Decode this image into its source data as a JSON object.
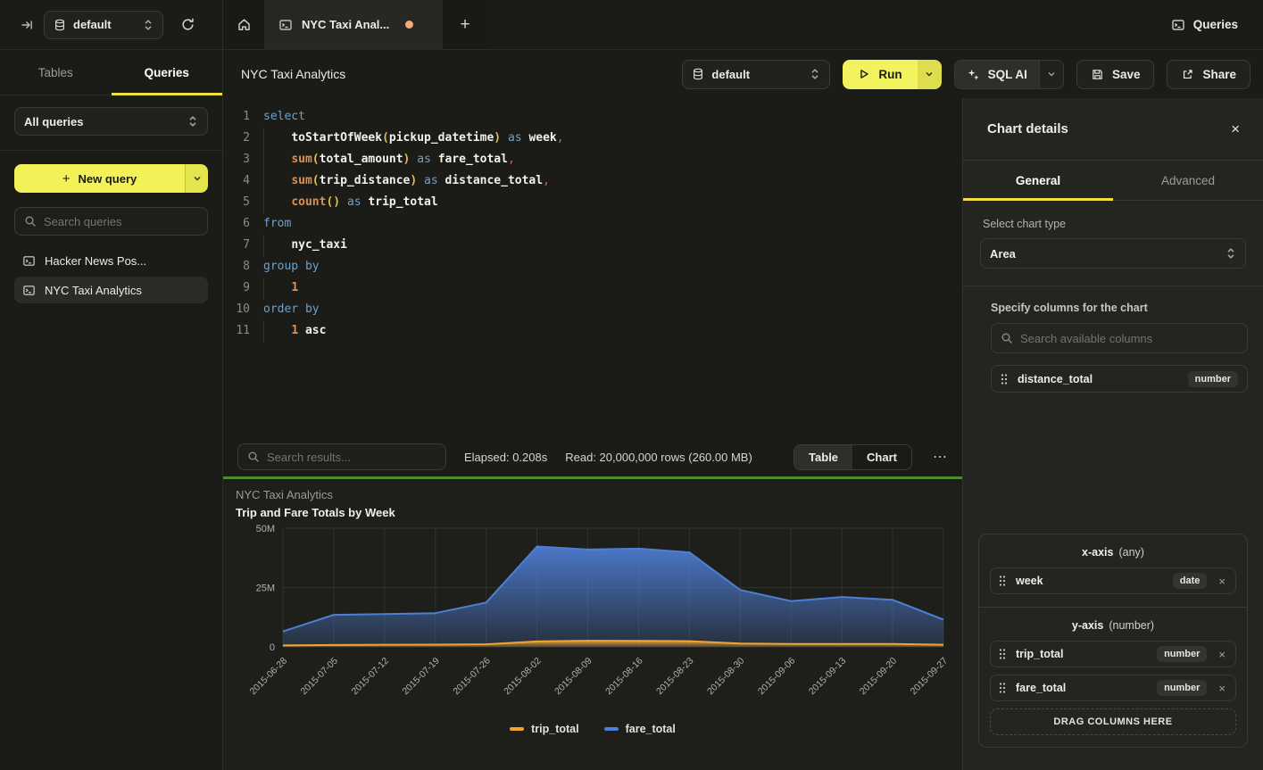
{
  "icons": {
    "plus": "+",
    "more": "⋯",
    "close": "×"
  },
  "colors": {
    "accent_yellow": "#F2F258",
    "tab_underline": "#F0E23C",
    "success_green": "#4E8C2E",
    "unsaved_dot": "#F2A878",
    "series_trip": "#F0A62E",
    "series_fare": "#4E7FD6"
  },
  "topbar": {
    "db_selector": "default",
    "tab_title": "NYC Taxi Anal...",
    "queries_button": "Queries"
  },
  "sidebar": {
    "tab_tables": "Tables",
    "tab_queries": "Queries",
    "filter_select": "All queries",
    "new_query_button": "New query",
    "search_placeholder": "Search queries",
    "queries": [
      {
        "label": "Hacker News Pos..."
      },
      {
        "label": "NYC Taxi Analytics"
      }
    ]
  },
  "toolbar": {
    "title": "NYC Taxi Analytics",
    "db_selector": "default",
    "run_label": "Run",
    "sql_ai_label": "SQL AI",
    "save_label": "Save",
    "share_label": "Share"
  },
  "editor": {
    "lines": [
      {
        "n": "1",
        "indent": false,
        "tokens": [
          {
            "t": "select",
            "c": "kw"
          }
        ]
      },
      {
        "n": "2",
        "indent": true,
        "tokens": [
          {
            "t": "    ",
            "c": "ws"
          },
          {
            "t": "toStartOfWeek",
            "c": "id"
          },
          {
            "t": "(",
            "c": "p"
          },
          {
            "t": "pickup_datetime",
            "c": "id"
          },
          {
            "t": ")",
            "c": "p"
          },
          {
            "t": " ",
            "c": "ws"
          },
          {
            "t": "as",
            "c": "kw"
          },
          {
            "t": " ",
            "c": "ws"
          },
          {
            "t": "week",
            "c": "id"
          },
          {
            "t": ",",
            "c": "punct"
          }
        ]
      },
      {
        "n": "3",
        "indent": true,
        "tokens": [
          {
            "t": "    ",
            "c": "ws"
          },
          {
            "t": "sum",
            "c": "fn"
          },
          {
            "t": "(",
            "c": "p"
          },
          {
            "t": "total_amount",
            "c": "id"
          },
          {
            "t": ")",
            "c": "p"
          },
          {
            "t": " ",
            "c": "ws"
          },
          {
            "t": "as",
            "c": "kw"
          },
          {
            "t": " ",
            "c": "ws"
          },
          {
            "t": "fare_total",
            "c": "id"
          },
          {
            "t": ",",
            "c": "punct"
          }
        ]
      },
      {
        "n": "4",
        "indent": true,
        "tokens": [
          {
            "t": "    ",
            "c": "ws"
          },
          {
            "t": "sum",
            "c": "fn"
          },
          {
            "t": "(",
            "c": "p"
          },
          {
            "t": "trip_distance",
            "c": "id"
          },
          {
            "t": ")",
            "c": "p"
          },
          {
            "t": " ",
            "c": "ws"
          },
          {
            "t": "as",
            "c": "kw"
          },
          {
            "t": " ",
            "c": "ws"
          },
          {
            "t": "distance_total",
            "c": "id"
          },
          {
            "t": ",",
            "c": "punct"
          }
        ]
      },
      {
        "n": "5",
        "indent": true,
        "tokens": [
          {
            "t": "    ",
            "c": "ws"
          },
          {
            "t": "count",
            "c": "fn"
          },
          {
            "t": "(",
            "c": "p"
          },
          {
            "t": ")",
            "c": "p"
          },
          {
            "t": " ",
            "c": "ws"
          },
          {
            "t": "as",
            "c": "kw"
          },
          {
            "t": " ",
            "c": "ws"
          },
          {
            "t": "trip_total",
            "c": "id"
          }
        ]
      },
      {
        "n": "6",
        "indent": false,
        "tokens": [
          {
            "t": "from",
            "c": "kw"
          }
        ]
      },
      {
        "n": "7",
        "indent": true,
        "tokens": [
          {
            "t": "    ",
            "c": "ws"
          },
          {
            "t": "nyc_taxi",
            "c": "id"
          }
        ]
      },
      {
        "n": "8",
        "indent": false,
        "tokens": [
          {
            "t": "group by",
            "c": "kw"
          }
        ]
      },
      {
        "n": "9",
        "indent": true,
        "tokens": [
          {
            "t": "    ",
            "c": "ws"
          },
          {
            "t": "1",
            "c": "num"
          }
        ]
      },
      {
        "n": "10",
        "indent": false,
        "tokens": [
          {
            "t": "order by",
            "c": "kw"
          }
        ]
      },
      {
        "n": "11",
        "indent": true,
        "tokens": [
          {
            "t": "    ",
            "c": "ws"
          },
          {
            "t": "1",
            "c": "num"
          },
          {
            "t": " ",
            "c": "ws"
          },
          {
            "t": "asc",
            "c": "id"
          }
        ]
      }
    ]
  },
  "results_bar": {
    "search_placeholder": "Search results...",
    "elapsed": "Elapsed: 0.208s",
    "read": "Read: 20,000,000 rows (260.00 MB)",
    "toggle_table": "Table",
    "toggle_chart": "Chart",
    "active_view": "Chart"
  },
  "chart_data": {
    "type": "area",
    "title": "NYC Taxi Analytics",
    "subtitle": "Trip and Fare Totals by Week",
    "x": [
      "2015-06-28",
      "2015-07-05",
      "2015-07-12",
      "2015-07-19",
      "2015-07-26",
      "2015-08-02",
      "2015-08-09",
      "2015-08-16",
      "2015-08-23",
      "2015-08-30",
      "2015-09-06",
      "2015-09-13",
      "2015-09-20",
      "2015-09-27"
    ],
    "series": [
      {
        "name": "trip_total",
        "color": "#F0A62E",
        "values": [
          600000,
          800000,
          900000,
          950000,
          1100000,
          2300000,
          2600000,
          2500000,
          2400000,
          1400000,
          1200000,
          1250000,
          1200000,
          900000
        ]
      },
      {
        "name": "fare_total",
        "color": "#4E7FD6",
        "values": [
          6500000,
          13500000,
          13800000,
          14200000,
          18700000,
          42300000,
          41000000,
          41400000,
          39800000,
          24000000,
          19300000,
          21000000,
          19800000,
          11500000
        ]
      }
    ],
    "ylim": [
      0,
      50000000
    ],
    "yticks": [
      {
        "value": 0,
        "label": "0"
      },
      {
        "value": 25000000,
        "label": "25M"
      },
      {
        "value": 50000000,
        "label": "50M"
      }
    ],
    "grid": true,
    "legend_position": "bottom"
  },
  "chart_details": {
    "title": "Chart details",
    "tab_general": "General",
    "tab_advanced": "Advanced",
    "active_tab": "General",
    "chart_type_label": "Select chart type",
    "chart_type_value": "Area",
    "columns_label": "Specify columns for the chart",
    "columns_search_placeholder": "Search available columns",
    "available_columns": [
      {
        "name": "distance_total",
        "type": "number"
      }
    ],
    "x_axis": {
      "title": "x-axis",
      "hint": "(any)",
      "items": [
        {
          "name": "week",
          "type": "date"
        }
      ]
    },
    "y_axis": {
      "title": "y-axis",
      "hint": "(number)",
      "items": [
        {
          "name": "trip_total",
          "type": "number"
        },
        {
          "name": "fare_total",
          "type": "number"
        }
      ]
    },
    "drop_zone_label": "DRAG COLUMNS HERE"
  }
}
